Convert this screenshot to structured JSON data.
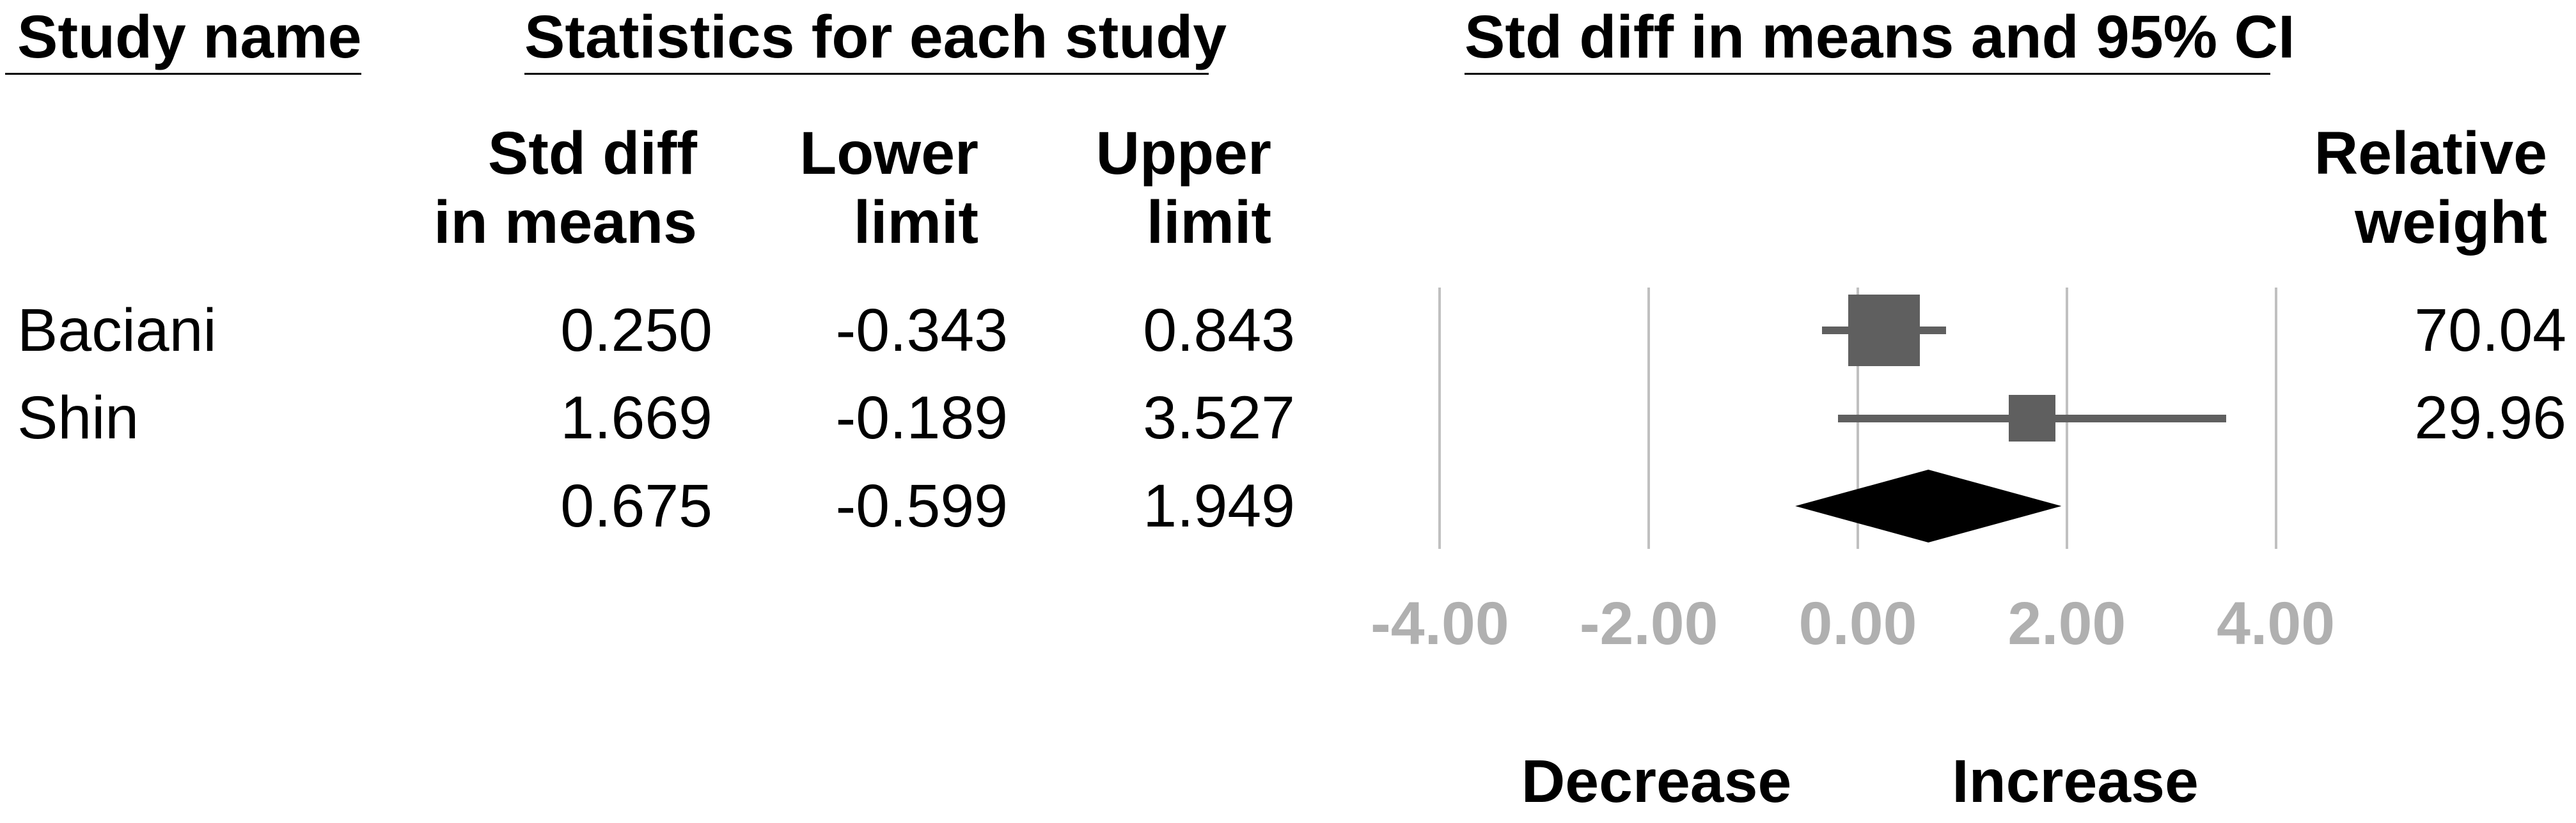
{
  "title_row": {
    "study_name": "Study name",
    "stats_group": "Statistics for each study",
    "plot_group": "Std diff in means and 95% CI"
  },
  "column_headers": {
    "std_diff": [
      "Std diff",
      "in means"
    ],
    "lower": [
      "Lower",
      "limit"
    ],
    "upper": [
      "Upper",
      "limit"
    ],
    "relative_weight": [
      "Relative",
      "weight"
    ]
  },
  "chart_data": {
    "type": "forest",
    "x_axis": {
      "min": -4,
      "max": 4,
      "tick_values": [
        -4,
        -2,
        0,
        2,
        4
      ],
      "tick_labels": [
        "-4.00",
        "-2.00",
        "0.00",
        "2.00",
        "4.00"
      ],
      "grid": "vertical-lines"
    },
    "studies": [
      {
        "name": "Baciani",
        "std_diff": "0.250",
        "lower": "-0.343",
        "upper": "0.843",
        "relative_weight": "70.04"
      },
      {
        "name": "Shin",
        "std_diff": "1.669",
        "lower": "-0.189",
        "upper": "3.527",
        "relative_weight": "29.96"
      }
    ],
    "summary": {
      "std_diff": "0.675",
      "lower": "-0.599",
      "upper": "1.949"
    },
    "direction_labels": {
      "left": "Decrease",
      "right": "Increase"
    }
  },
  "colors": {
    "text": "#000000",
    "marker": "#5f5f5f",
    "summary_diamond": "#000000",
    "gridline": "#c0c0c0",
    "axis_label": "#b0b0b0"
  }
}
